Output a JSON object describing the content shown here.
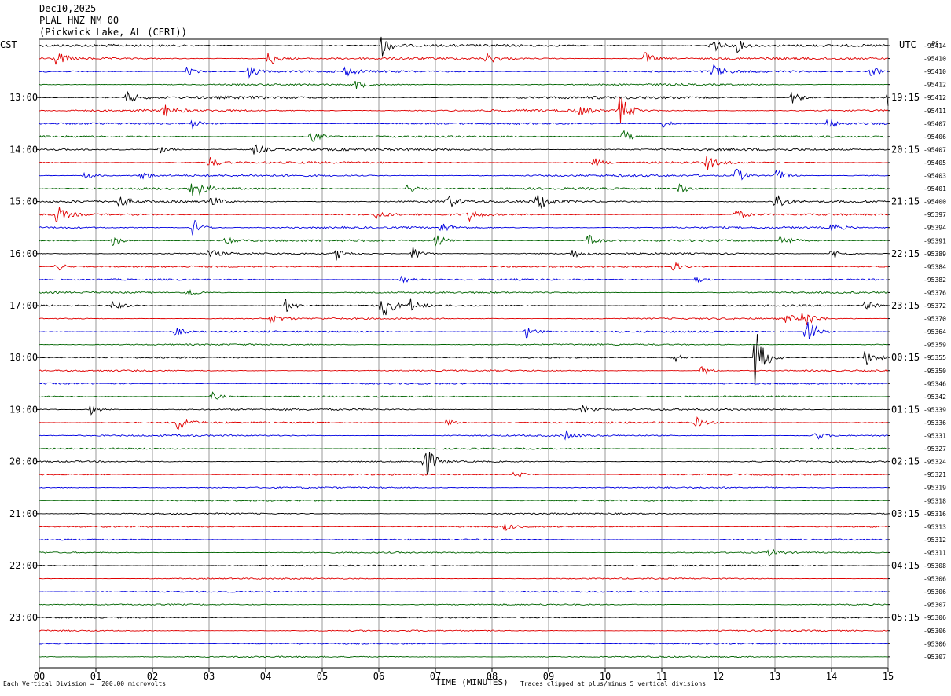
{
  "header": {
    "date": "Dec10,2025",
    "station": "PLAL HNZ NM 00",
    "location": "(Pickwick Lake, AL (CERI))"
  },
  "left_timezone": "CST",
  "right_timezone": "UTC",
  "dc_label": "DC",
  "footer": {
    "scale_note": "Each Vertical Division =  200.00 microvolts",
    "clip_note": "Traces clipped at plus/minus 5 vertical divisions"
  },
  "colors": {
    "black": "#000000",
    "red": "#e00000",
    "blue": "#0000e0",
    "green": "#006400",
    "grid": "#808080"
  },
  "chart_data": {
    "type": "line",
    "xlabel": "TIME (MINUTES)",
    "x_ticks": [
      "00",
      "01",
      "02",
      "03",
      "04",
      "05",
      "06",
      "07",
      "08",
      "09",
      "10",
      "11",
      "12",
      "13",
      "14",
      "15"
    ],
    "xlim": [
      0,
      15
    ],
    "left_hour_labels": [
      "13:00",
      "14:00",
      "15:00",
      "16:00",
      "17:00",
      "18:00",
      "19:00",
      "20:00",
      "21:00",
      "22:00",
      "23:00"
    ],
    "right_hour_labels": [
      "19:15",
      "20:15",
      "21:15",
      "22:15",
      "23:15",
      "00:15",
      "01:15",
      "02:15",
      "03:15",
      "04:15",
      "05:15"
    ],
    "trace_colors": [
      "black",
      "red",
      "blue",
      "green"
    ],
    "dc_offsets": [
      "-95414",
      "-95410",
      "-95410",
      "-95412",
      "-95412",
      "-95411",
      "-95407",
      "-95406",
      "-95407",
      "-95405",
      "-95403",
      "-95401",
      "-95400",
      "-95397",
      "-95394",
      "-95391",
      "-95389",
      "-95384",
      "-95382",
      "-95376",
      "-95372",
      "-95370",
      "-95364",
      "-95359",
      "-95355",
      "-95350",
      "-95346",
      "-95342",
      "-95339",
      "-95336",
      "-95331",
      "-95327",
      "-95324",
      "-95321",
      "-95319",
      "-95318",
      "-95316",
      "-95313",
      "-95312",
      "-95311",
      "-95308",
      "-95306",
      "-95306",
      "-95307",
      "-95306",
      "-95306",
      "-95306",
      "-95307"
    ],
    "events": [
      {
        "trace": 0,
        "minute": 6.05,
        "amp": 14
      },
      {
        "trace": 0,
        "minute": 11.85,
        "amp": 14
      },
      {
        "trace": 0,
        "minute": 12.3,
        "amp": 10
      },
      {
        "trace": 1,
        "minute": 0.3,
        "amp": 9
      },
      {
        "trace": 1,
        "minute": 4.05,
        "amp": 12
      },
      {
        "trace": 1,
        "minute": 7.9,
        "amp": 8
      },
      {
        "trace": 1,
        "minute": 10.7,
        "amp": 9
      },
      {
        "trace": 2,
        "minute": 2.6,
        "amp": 6
      },
      {
        "trace": 2,
        "minute": 3.7,
        "amp": 8
      },
      {
        "trace": 2,
        "minute": 5.4,
        "amp": 6
      },
      {
        "trace": 2,
        "minute": 11.9,
        "amp": 10
      },
      {
        "trace": 2,
        "minute": 14.7,
        "amp": 7
      },
      {
        "trace": 3,
        "minute": 5.6,
        "amp": 6
      },
      {
        "trace": 4,
        "minute": 1.55,
        "amp": 8
      },
      {
        "trace": 4,
        "minute": 13.3,
        "amp": 9
      },
      {
        "trace": 4,
        "minute": 15.0,
        "amp": 12
      },
      {
        "trace": 5,
        "minute": 2.2,
        "amp": 9
      },
      {
        "trace": 5,
        "minute": 9.5,
        "amp": 8
      },
      {
        "trace": 5,
        "minute": 10.25,
        "amp": 22
      },
      {
        "trace": 6,
        "minute": 2.7,
        "amp": 6
      },
      {
        "trace": 6,
        "minute": 11.0,
        "amp": 6
      },
      {
        "trace": 6,
        "minute": 13.9,
        "amp": 7
      },
      {
        "trace": 7,
        "minute": 4.8,
        "amp": 9
      },
      {
        "trace": 7,
        "minute": 10.3,
        "amp": 10
      },
      {
        "trace": 8,
        "minute": 3.8,
        "amp": 8
      },
      {
        "trace": 8,
        "minute": 2.1,
        "amp": 6
      },
      {
        "trace": 9,
        "minute": 3.0,
        "amp": 8
      },
      {
        "trace": 9,
        "minute": 9.8,
        "amp": 6
      },
      {
        "trace": 9,
        "minute": 11.8,
        "amp": 9
      },
      {
        "trace": 10,
        "minute": 0.8,
        "amp": 6
      },
      {
        "trace": 10,
        "minute": 1.8,
        "amp": 6
      },
      {
        "trace": 10,
        "minute": 12.3,
        "amp": 11
      },
      {
        "trace": 10,
        "minute": 13.0,
        "amp": 12
      },
      {
        "trace": 11,
        "minute": 2.7,
        "amp": 18
      },
      {
        "trace": 11,
        "minute": 6.5,
        "amp": 6
      },
      {
        "trace": 11,
        "minute": 11.3,
        "amp": 9
      },
      {
        "trace": 12,
        "minute": 1.4,
        "amp": 8
      },
      {
        "trace": 12,
        "minute": 3.0,
        "amp": 10
      },
      {
        "trace": 12,
        "minute": 7.2,
        "amp": 10
      },
      {
        "trace": 12,
        "minute": 8.8,
        "amp": 14
      },
      {
        "trace": 12,
        "minute": 13.0,
        "amp": 15
      },
      {
        "trace": 13,
        "minute": 0.3,
        "amp": 12
      },
      {
        "trace": 13,
        "minute": 5.95,
        "amp": 6
      },
      {
        "trace": 13,
        "minute": 7.6,
        "amp": 8
      },
      {
        "trace": 13,
        "minute": 12.3,
        "amp": 7
      },
      {
        "trace": 14,
        "minute": 2.7,
        "amp": 14
      },
      {
        "trace": 14,
        "minute": 7.1,
        "amp": 7
      },
      {
        "trace": 14,
        "minute": 14.0,
        "amp": 6
      },
      {
        "trace": 15,
        "minute": 1.3,
        "amp": 8
      },
      {
        "trace": 15,
        "minute": 3.3,
        "amp": 7
      },
      {
        "trace": 15,
        "minute": 7.0,
        "amp": 9
      },
      {
        "trace": 15,
        "minute": 9.7,
        "amp": 8
      },
      {
        "trace": 15,
        "minute": 13.1,
        "amp": 8
      },
      {
        "trace": 16,
        "minute": 3.0,
        "amp": 6
      },
      {
        "trace": 16,
        "minute": 5.25,
        "amp": 8
      },
      {
        "trace": 16,
        "minute": 6.6,
        "amp": 10
      },
      {
        "trace": 16,
        "minute": 9.4,
        "amp": 7
      },
      {
        "trace": 16,
        "minute": 14.0,
        "amp": 9
      },
      {
        "trace": 17,
        "minute": 0.3,
        "amp": 6
      },
      {
        "trace": 17,
        "minute": 11.2,
        "amp": 6
      },
      {
        "trace": 18,
        "minute": 6.4,
        "amp": 5
      },
      {
        "trace": 18,
        "minute": 11.6,
        "amp": 5
      },
      {
        "trace": 19,
        "minute": 2.6,
        "amp": 7
      },
      {
        "trace": 20,
        "minute": 1.3,
        "amp": 8
      },
      {
        "trace": 20,
        "minute": 4.35,
        "amp": 9
      },
      {
        "trace": 20,
        "minute": 6.05,
        "amp": 20
      },
      {
        "trace": 20,
        "minute": 6.55,
        "amp": 9
      },
      {
        "trace": 20,
        "minute": 14.6,
        "amp": 7
      },
      {
        "trace": 21,
        "minute": 4.1,
        "amp": 7
      },
      {
        "trace": 21,
        "minute": 13.2,
        "amp": 7
      },
      {
        "trace": 21,
        "minute": 13.5,
        "amp": 14
      },
      {
        "trace": 22,
        "minute": 2.4,
        "amp": 6
      },
      {
        "trace": 22,
        "minute": 8.6,
        "amp": 9
      },
      {
        "trace": 22,
        "minute": 13.55,
        "amp": 22
      },
      {
        "trace": 24,
        "minute": 11.2,
        "amp": 7
      },
      {
        "trace": 24,
        "minute": 12.65,
        "amp": 45
      },
      {
        "trace": 24,
        "minute": 14.6,
        "amp": 12
      },
      {
        "trace": 25,
        "minute": 11.7,
        "amp": 7
      },
      {
        "trace": 27,
        "minute": 3.05,
        "amp": 6
      },
      {
        "trace": 28,
        "minute": 0.9,
        "amp": 7
      },
      {
        "trace": 28,
        "minute": 9.6,
        "amp": 5
      },
      {
        "trace": 29,
        "minute": 2.45,
        "amp": 12
      },
      {
        "trace": 29,
        "minute": 7.2,
        "amp": 6
      },
      {
        "trace": 29,
        "minute": 11.6,
        "amp": 7
      },
      {
        "trace": 30,
        "minute": 9.3,
        "amp": 5
      },
      {
        "trace": 30,
        "minute": 13.7,
        "amp": 7
      },
      {
        "trace": 32,
        "minute": 6.8,
        "amp": 24
      },
      {
        "trace": 33,
        "minute": 8.4,
        "amp": 6
      },
      {
        "trace": 37,
        "minute": 8.2,
        "amp": 6
      },
      {
        "trace": 39,
        "minute": 12.9,
        "amp": 5
      }
    ],
    "noise_level": [
      1.6,
      1.6,
      1.4,
      1.2,
      1.8,
      1.5,
      1.2,
      1.2,
      1.6,
      1.3,
      1.4,
      1.5,
      1.6,
      1.3,
      1.3,
      1.4,
      1.2,
      1.2,
      1.1,
      1.1,
      1.1,
      1.1,
      1.1,
      1.0,
      1.0,
      1.0,
      1.0,
      1.0,
      1.2,
      1.1,
      1.1,
      1.0,
      1.0,
      1.0,
      1.0,
      1.0,
      0.9,
      0.9,
      0.9,
      0.9,
      0.9,
      0.9,
      0.9,
      0.9,
      0.9,
      0.9,
      0.9,
      0.9
    ]
  }
}
